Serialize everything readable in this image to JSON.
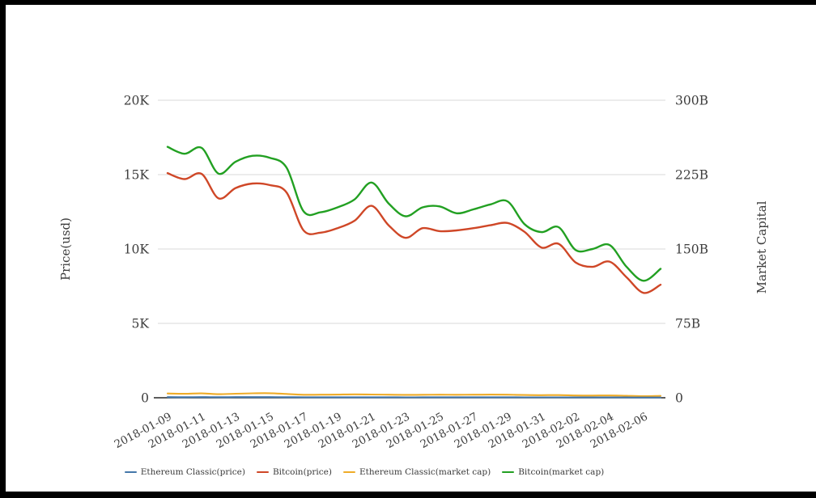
{
  "chart_data": {
    "type": "line",
    "title": "",
    "grid": "horizontal",
    "legend_position": "bottom",
    "y_left": {
      "label": "Price(usd)",
      "unit": "USD",
      "ticks": [
        "0",
        "5K",
        "10K",
        "15K",
        "20K"
      ],
      "tick_values": [
        0,
        5000,
        10000,
        15000,
        20000
      ],
      "range": [
        0,
        20000
      ]
    },
    "y_right": {
      "label": "Market Capital",
      "unit": "B USD",
      "ticks": [
        "0",
        "75B",
        "150B",
        "225B",
        "300B"
      ],
      "tick_values": [
        0,
        75,
        150,
        225,
        300
      ],
      "range": [
        0,
        300
      ]
    },
    "x": [
      "2018-01-09",
      "2018-01-10",
      "2018-01-11",
      "2018-01-12",
      "2018-01-13",
      "2018-01-14",
      "2018-01-15",
      "2018-01-16",
      "2018-01-17",
      "2018-01-18",
      "2018-01-19",
      "2018-01-20",
      "2018-01-21",
      "2018-01-22",
      "2018-01-23",
      "2018-01-24",
      "2018-01-25",
      "2018-01-26",
      "2018-01-27",
      "2018-01-28",
      "2018-01-29",
      "2018-01-30",
      "2018-01-31",
      "2018-02-01",
      "2018-02-02",
      "2018-02-03",
      "2018-02-04",
      "2018-02-05",
      "2018-02-06",
      "2018-02-07"
    ],
    "x_tick_labels": [
      "2018-01-09",
      "2018-01-11",
      "2018-01-13",
      "2018-01-15",
      "2018-01-17",
      "2018-01-19",
      "2018-01-21",
      "2018-01-23",
      "2018-01-25",
      "2018-01-27",
      "2018-01-29",
      "2018-01-31",
      "2018-02-02",
      "2018-02-04",
      "2018-02-06"
    ],
    "series": [
      {
        "name": "Ethereum Classic(price)",
        "axis": "left",
        "color": "#4477aa",
        "values": [
          43,
          40,
          44,
          36,
          41,
          45,
          46,
          38,
          30,
          31,
          32,
          34,
          33,
          31,
          29,
          30,
          31,
          30,
          31,
          32,
          31,
          28,
          26,
          27,
          23,
          22,
          23,
          20,
          16,
          19
        ]
      },
      {
        "name": "Bitcoin(price)",
        "axis": "left",
        "color": "#cf4727",
        "values": [
          15100,
          14700,
          15050,
          13400,
          14100,
          14400,
          14300,
          13800,
          11250,
          11100,
          11400,
          11900,
          12900,
          11600,
          10750,
          11400,
          11200,
          11250,
          11400,
          11600,
          11750,
          11150,
          10100,
          10350,
          9100,
          8800,
          9150,
          8100,
          7050,
          7600
        ]
      },
      {
        "name": "Ethereum Classic(market cap)",
        "axis": "right",
        "color": "#efac28",
        "values": [
          4.3,
          4.0,
          4.4,
          3.6,
          4.1,
          4.5,
          4.6,
          3.8,
          3.0,
          3.1,
          3.2,
          3.4,
          3.3,
          3.1,
          2.9,
          3.0,
          3.1,
          3.0,
          3.1,
          3.2,
          3.1,
          2.8,
          2.6,
          2.7,
          2.3,
          2.2,
          2.3,
          2.0,
          1.6,
          1.9
        ]
      },
      {
        "name": "Bitcoin(market cap)",
        "axis": "right",
        "color": "#22a022",
        "values": [
          253,
          246,
          252,
          226,
          238,
          244,
          242,
          232,
          188,
          187,
          192,
          200,
          217,
          196,
          183,
          192,
          193,
          186,
          190,
          195,
          198,
          175,
          167,
          172,
          149,
          150,
          154,
          132,
          118,
          130
        ]
      }
    ]
  }
}
